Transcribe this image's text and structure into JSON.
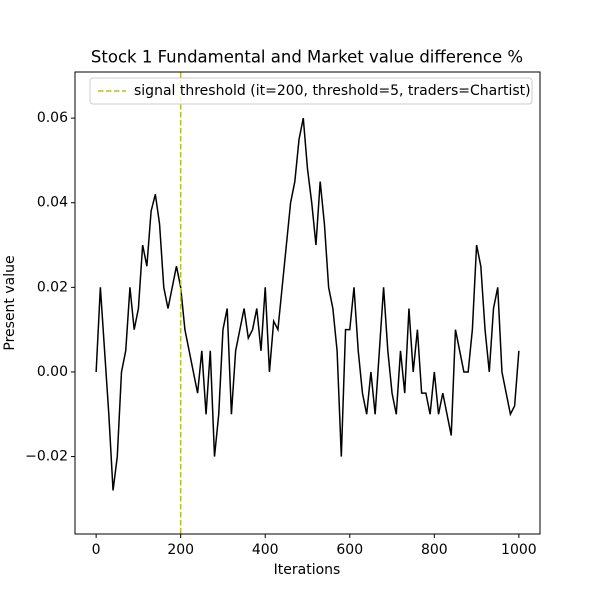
{
  "chart_data": {
    "type": "line",
    "title": "Stock 1 Fundamental and Market value difference %",
    "x_label": "Iterations",
    "y_label": "Present value",
    "x": [
      0,
      10,
      20,
      30,
      40,
      50,
      60,
      70,
      80,
      90,
      100,
      110,
      120,
      130,
      140,
      150,
      160,
      170,
      180,
      190,
      200,
      210,
      220,
      230,
      240,
      250,
      260,
      270,
      280,
      290,
      300,
      310,
      320,
      330,
      340,
      350,
      360,
      370,
      380,
      390,
      400,
      410,
      420,
      430,
      440,
      450,
      460,
      470,
      480,
      490,
      500,
      510,
      520,
      530,
      540,
      550,
      560,
      570,
      580,
      590,
      600,
      610,
      620,
      630,
      640,
      650,
      660,
      670,
      680,
      690,
      700,
      710,
      720,
      730,
      740,
      750,
      760,
      770,
      780,
      790,
      800,
      810,
      820,
      830,
      840,
      850,
      860,
      870,
      880,
      890,
      900,
      910,
      920,
      930,
      940,
      950,
      960,
      970,
      980,
      990,
      1000
    ],
    "series": [
      {
        "color": "#000000",
        "values": [
          0.0,
          0.02,
          0.005,
          -0.01,
          -0.028,
          -0.02,
          0.0,
          0.005,
          0.02,
          0.01,
          0.015,
          0.03,
          0.025,
          0.038,
          0.042,
          0.035,
          0.02,
          0.015,
          0.02,
          0.025,
          0.02,
          0.01,
          0.005,
          0.0,
          -0.005,
          0.005,
          -0.01,
          0.005,
          -0.02,
          -0.01,
          0.01,
          0.015,
          -0.01,
          0.005,
          0.01,
          0.015,
          0.008,
          0.01,
          0.015,
          0.005,
          0.02,
          0.0,
          0.012,
          0.01,
          0.02,
          0.03,
          0.04,
          0.045,
          0.055,
          0.06,
          0.048,
          0.04,
          0.03,
          0.045,
          0.035,
          0.02,
          0.015,
          0.005,
          -0.02,
          0.01,
          0.01,
          0.02,
          0.005,
          -0.005,
          -0.01,
          0.0,
          -0.01,
          0.005,
          0.02,
          0.005,
          -0.005,
          -0.01,
          0.005,
          -0.005,
          0.015,
          0.0,
          0.01,
          -0.005,
          -0.005,
          -0.01,
          0.0,
          -0.01,
          -0.005,
          -0.01,
          -0.015,
          0.01,
          0.005,
          0.0,
          0.0,
          0.01,
          0.03,
          0.025,
          0.01,
          0.0,
          0.015,
          0.02,
          0.0,
          -0.005,
          -0.01,
          -0.008,
          0.005
        ]
      }
    ],
    "vlines": [
      {
        "x": 200,
        "label": "signal threshold (it=200, threshold=5, traders=Chartist)",
        "color": "#bcbd22"
      }
    ],
    "legend_position": "upper right",
    "xlim": [
      -50,
      1050
    ],
    "xticks": [
      0,
      200,
      400,
      600,
      800,
      1000
    ],
    "ylim": [
      -0.0383,
      0.0709
    ],
    "yticks": [
      {
        "value": -0.02,
        "label": "−0.02"
      },
      {
        "value": 0,
        "label": "0.00"
      },
      0.02,
      0.04,
      0.06
    ]
  }
}
